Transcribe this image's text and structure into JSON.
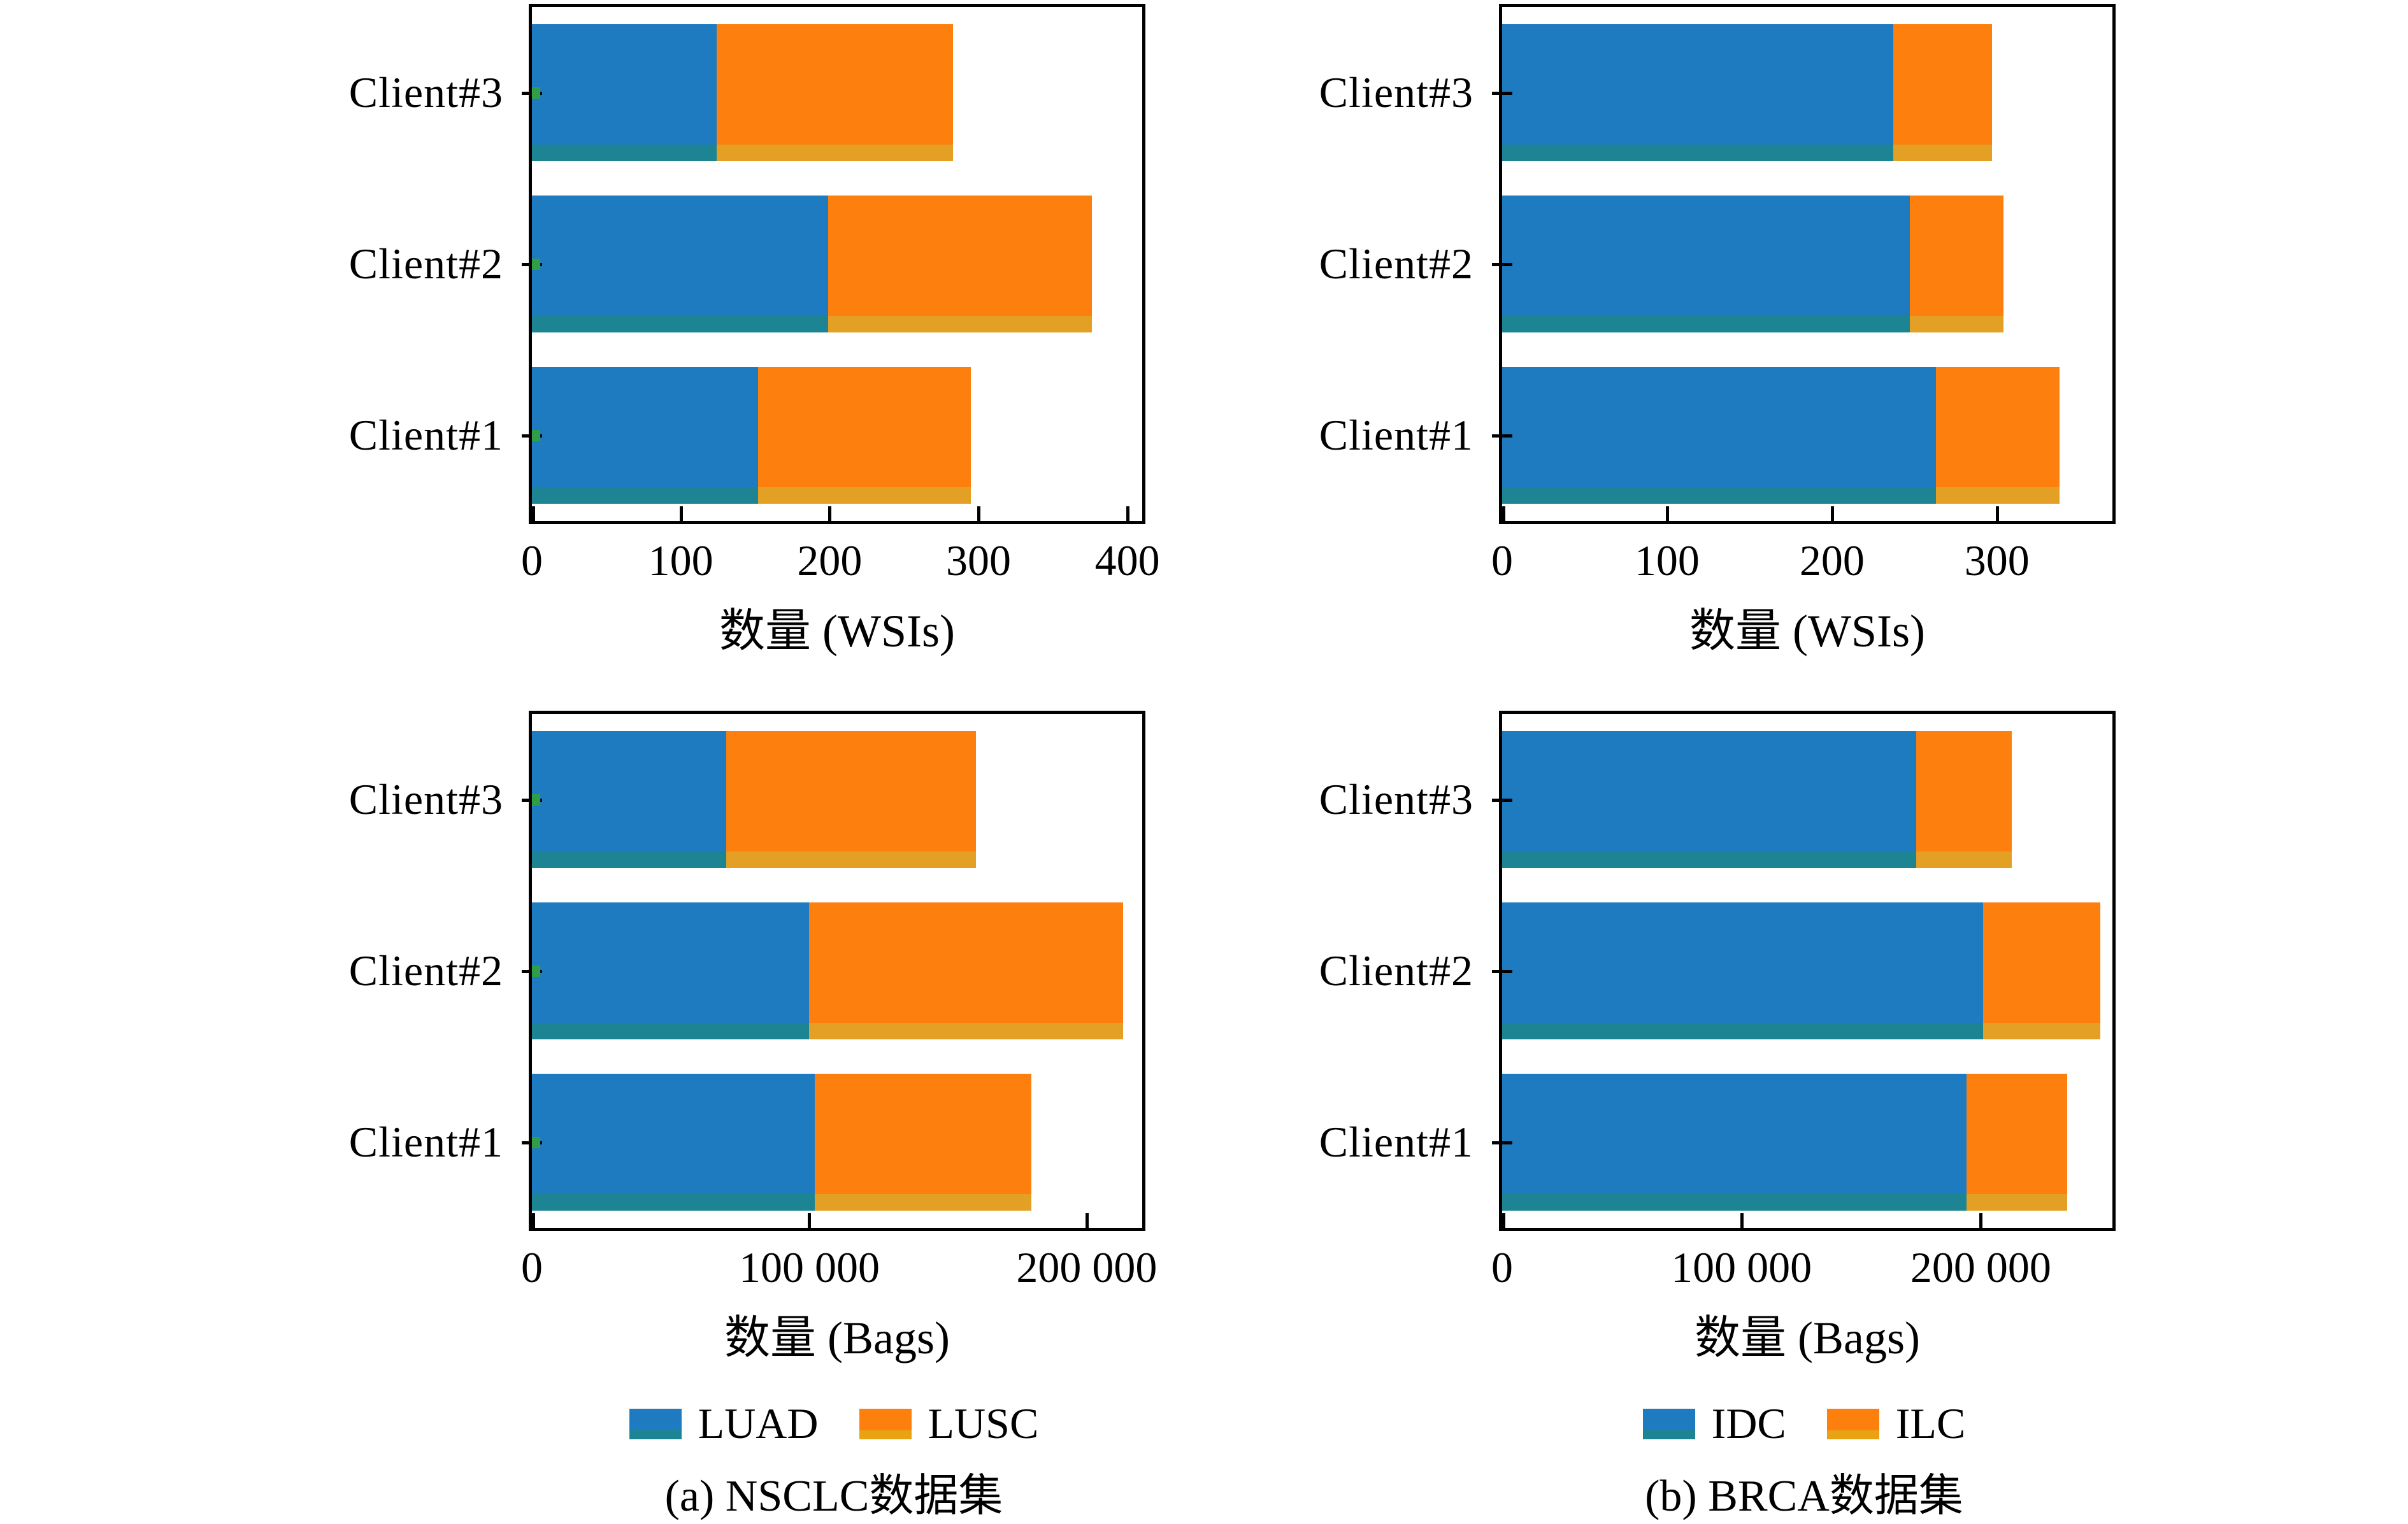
{
  "figure": {
    "background": "#ffffff",
    "axis_color": "#000000",
    "green_axis_mark_color": "#2f9e49",
    "blue_edge_artifact_color": "#1d8494",
    "orange_edge_artifact_color": "#e3a024"
  },
  "captions": {
    "a": "(a) NSCLC数据集",
    "b": "(b) BRCA数据集"
  },
  "legends": [
    {
      "entries": [
        {
          "label": "LUAD",
          "color": "#1f7bc0",
          "edge_color": "#1d8494"
        },
        {
          "label": "LUSC",
          "color": "#fd7f0e",
          "edge_color": "#e8a213"
        }
      ]
    },
    {
      "entries": [
        {
          "label": "IDC",
          "color": "#1f7bc0",
          "edge_color": "#1d8494"
        },
        {
          "label": "ILC",
          "color": "#fd7f0e",
          "edge_color": "#e8a213"
        }
      ]
    }
  ],
  "chart_data": [
    {
      "type": "bar",
      "orientation": "horizontal",
      "stacked": true,
      "dataset": "NSCLC",
      "unit": "WSIs",
      "categories": [
        "Client#3",
        "Client#2",
        "Client#1"
      ],
      "series": [
        {
          "name": "LUAD",
          "color": "#1f7bc0",
          "edge": "#1d8494",
          "values": [
            124,
            199,
            152
          ]
        },
        {
          "name": "LUSC",
          "color": "#fd7f0e",
          "edge": "#e3a024",
          "values": [
            159,
            177,
            143
          ]
        }
      ],
      "totals": [
        283,
        376,
        295
      ],
      "xlabel": "数量 (WSIs)",
      "xlim": [
        0,
        410
      ],
      "xticks": [
        {
          "value": 0,
          "label": "0"
        },
        {
          "value": 100,
          "label": "100"
        },
        {
          "value": 200,
          "label": "200"
        },
        {
          "value": 300,
          "label": "300"
        },
        {
          "value": 400,
          "label": "400"
        }
      ],
      "grid": false,
      "has_green_axis_marks": true
    },
    {
      "type": "bar",
      "orientation": "horizontal",
      "stacked": true,
      "dataset": "BRCA",
      "unit": "WSIs",
      "categories": [
        "Client#3",
        "Client#2",
        "Client#1"
      ],
      "series": [
        {
          "name": "IDC",
          "color": "#1f7bc0",
          "edge": "#1d8494",
          "values": [
            237,
            247,
            263
          ]
        },
        {
          "name": "ILC",
          "color": "#fd7f0e",
          "edge": "#e3a024",
          "values": [
            60,
            57,
            75
          ]
        }
      ],
      "totals": [
        297,
        304,
        338
      ],
      "xlabel": "数量 (WSIs)",
      "xlim": [
        0,
        370
      ],
      "xticks": [
        {
          "value": 0,
          "label": "0"
        },
        {
          "value": 100,
          "label": "100"
        },
        {
          "value": 200,
          "label": "200"
        },
        {
          "value": 300,
          "label": "300"
        }
      ],
      "grid": false,
      "has_green_axis_marks": false
    },
    {
      "type": "bar",
      "orientation": "horizontal",
      "stacked": true,
      "dataset": "NSCLC",
      "unit": "Bags",
      "categories": [
        "Client#3",
        "Client#2",
        "Client#1"
      ],
      "series": [
        {
          "name": "LUAD",
          "color": "#1f7bc0",
          "edge": "#1d8494",
          "values": [
            70000,
            100000,
            102000
          ]
        },
        {
          "name": "LUSC",
          "color": "#fd7f0e",
          "edge": "#e3a024",
          "values": [
            90000,
            113000,
            78000
          ]
        }
      ],
      "totals": [
        160000,
        213000,
        180000
      ],
      "xlabel": "数量 (Bags)",
      "xlim": [
        0,
        220000
      ],
      "xticks": [
        {
          "value": 0,
          "label": "0"
        },
        {
          "value": 100000,
          "label": "100 000"
        },
        {
          "value": 200000,
          "label": "200 000"
        }
      ],
      "grid": false,
      "has_green_axis_marks": true
    },
    {
      "type": "bar",
      "orientation": "horizontal",
      "stacked": true,
      "dataset": "BRCA",
      "unit": "Bags",
      "categories": [
        "Client#3",
        "Client#2",
        "Client#1"
      ],
      "series": [
        {
          "name": "IDC",
          "color": "#1f7bc0",
          "edge": "#1d8494",
          "values": [
            173000,
            201000,
            194000
          ]
        },
        {
          "name": "ILC",
          "color": "#fd7f0e",
          "edge": "#e3a024",
          "values": [
            40000,
            49000,
            42000
          ]
        }
      ],
      "totals": [
        213000,
        250000,
        236000
      ],
      "xlabel": "数量 (Bags)",
      "xlim": [
        0,
        255000
      ],
      "xticks": [
        {
          "value": 0,
          "label": "0"
        },
        {
          "value": 100000,
          "label": "100 000"
        },
        {
          "value": 200000,
          "label": "200 000"
        }
      ],
      "grid": false,
      "has_green_axis_marks": false
    }
  ]
}
